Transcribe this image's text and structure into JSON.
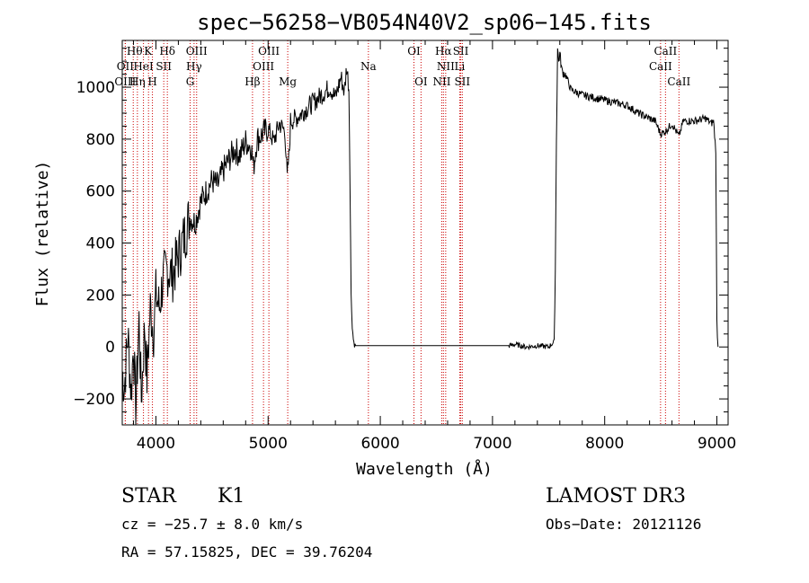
{
  "chart_data": {
    "type": "line",
    "title": "spec−56258−VB054N40V2_sp06−145.fits",
    "xlabel": "Wavelength (Å)",
    "ylabel": "Flux (relative)",
    "xlim": [
      3700,
      9100
    ],
    "ylim": [
      -300,
      1180
    ],
    "x_ticks": [
      4000,
      5000,
      6000,
      7000,
      8000,
      9000
    ],
    "y_ticks": [
      -200,
      0,
      200,
      400,
      600,
      800,
      1000
    ],
    "x_tick_labels": [
      "4000",
      "5000",
      "6000",
      "7000",
      "8000",
      "9000"
    ],
    "y_tick_labels": [
      "−200",
      "0",
      "200",
      "400",
      "600",
      "800",
      "1000"
    ],
    "series": [
      {
        "name": "spectrum",
        "x": [
          3700,
          3720,
          3750,
          3780,
          3800,
          3820,
          3850,
          3870,
          3900,
          3920,
          3950,
          3980,
          4000,
          4030,
          4060,
          4100,
          4150,
          4200,
          4250,
          4300,
          4350,
          4400,
          4450,
          4500,
          4550,
          4600,
          4650,
          4700,
          4750,
          4800,
          4850,
          4870,
          4900,
          4950,
          5000,
          5050,
          5100,
          5150,
          5170,
          5190,
          5200,
          5250,
          5300,
          5350,
          5400,
          5450,
          5500,
          5550,
          5600,
          5650,
          5680,
          5700,
          5720,
          5730,
          5740,
          5750,
          5760,
          5770,
          5780,
          5800,
          6000,
          6500,
          7000,
          7150,
          7200,
          7300,
          7400,
          7500,
          7550,
          7560,
          7570,
          7580,
          7590,
          7600,
          7620,
          7650,
          7700,
          7750,
          7800,
          7900,
          8000,
          8100,
          8200,
          8300,
          8400,
          8450,
          8498,
          8542,
          8600,
          8662,
          8700,
          8800,
          8900,
          8950,
          8970,
          8990,
          9000,
          9010
        ],
        "y": [
          -100,
          -150,
          50,
          -180,
          20,
          -250,
          100,
          -200,
          80,
          -120,
          150,
          60,
          200,
          150,
          250,
          300,
          280,
          350,
          420,
          500,
          480,
          560,
          600,
          640,
          620,
          680,
          720,
          760,
          740,
          790,
          770,
          690,
          800,
          820,
          840,
          790,
          860,
          830,
          650,
          760,
          870,
          880,
          900,
          920,
          940,
          960,
          980,
          1000,
          960,
          1040,
          980,
          1080,
          1000,
          650,
          200,
          80,
          30,
          8,
          5,
          5,
          5,
          5,
          5,
          5,
          10,
          0,
          5,
          0,
          20,
          300,
          800,
          1150,
          1100,
          1130,
          1060,
          1050,
          990,
          980,
          970,
          960,
          950,
          940,
          930,
          900,
          880,
          870,
          820,
          830,
          860,
          810,
          870,
          870,
          880,
          860,
          870,
          760,
          100,
          0
        ]
      }
    ],
    "emission_lines": [
      {
        "label": "Hθ",
        "wavelength": 3798
      },
      {
        "label": "OII",
        "wavelength": 3727
      },
      {
        "label": "OIII",
        "wavelength": 3727
      },
      {
        "label": "HeI",
        "wavelength": 3889
      },
      {
        "label": "Hη",
        "wavelength": 3835
      },
      {
        "label": "K",
        "wavelength": 3934
      },
      {
        "label": "H",
        "wavelength": 3969
      },
      {
        "label": "SII",
        "wavelength": 4070
      },
      {
        "label": "Hδ",
        "wavelength": 4102
      },
      {
        "label": "OIII",
        "wavelength": 4363
      },
      {
        "label": "Hγ",
        "wavelength": 4340
      },
      {
        "label": "G",
        "wavelength": 4305
      },
      {
        "label": "Hβ",
        "wavelength": 4861
      },
      {
        "label": "OIII",
        "wavelength": 4959
      },
      {
        "label": "OIII",
        "wavelength": 5007
      },
      {
        "label": "Mg",
        "wavelength": 5175
      },
      {
        "label": "Na",
        "wavelength": 5894
      },
      {
        "label": "OI",
        "wavelength": 6300
      },
      {
        "label": "OI",
        "wavelength": 6363
      },
      {
        "label": "Hα",
        "wavelength": 6563
      },
      {
        "label": "NII",
        "wavelength": 6548
      },
      {
        "label": "NII",
        "wavelength": 6583
      },
      {
        "label": "SII",
        "wavelength": 6717
      },
      {
        "label": "SII",
        "wavelength": 6731
      },
      {
        "label": "Li",
        "wavelength": 6708
      },
      {
        "label": "CaII",
        "wavelength": 8498
      },
      {
        "label": "CaII",
        "wavelength": 8542
      },
      {
        "label": "CaII",
        "wavelength": 8662
      }
    ],
    "label_rows": [
      [
        {
          "t": "Hθ",
          "w": 3810
        },
        {
          "t": "K",
          "w": 3930
        },
        {
          "t": "Hδ",
          "w": 4102
        },
        {
          "t": "OIII",
          "w": 4363
        },
        {
          "t": "OIII",
          "w": 5007
        },
        {
          "t": "OI",
          "w": 6300
        },
        {
          "t": "Hα",
          "w": 6563
        },
        {
          "t": "SII",
          "w": 6717
        },
        {
          "t": "CaII",
          "w": 8542
        }
      ],
      [
        {
          "t": "OII",
          "w": 3727
        },
        {
          "t": "HeI",
          "w": 3889
        },
        {
          "t": "SII",
          "w": 4070
        },
        {
          "t": "Hγ",
          "w": 4340
        },
        {
          "t": "OIII",
          "w": 4959
        },
        {
          "t": "Na",
          "w": 5894
        },
        {
          "t": "NII",
          "w": 6583
        },
        {
          "t": "Li",
          "w": 6708
        },
        {
          "t": "CaII",
          "w": 8498
        }
      ],
      [
        {
          "t": "OIII",
          "w": 3727
        },
        {
          "t": "Hη",
          "w": 3835
        },
        {
          "t": "H",
          "w": 3969
        },
        {
          "t": "G",
          "w": 4305
        },
        {
          "t": "Hβ",
          "w": 4861
        },
        {
          "t": "Mg",
          "w": 5175
        },
        {
          "t": "OI",
          "w": 6363
        },
        {
          "t": "NII",
          "w": 6548
        },
        {
          "t": "SII",
          "w": 6731
        },
        {
          "t": "CaII",
          "w": 8662
        }
      ]
    ]
  },
  "info": {
    "object_type": "STAR",
    "subclass": "K1",
    "survey": "LAMOST DR3",
    "cz": "cz = −25.7 ± 8.0 km/s",
    "obs_date": "Obs−Date: 20121126",
    "radec": "RA =  57.15825, DEC =  39.76204"
  }
}
